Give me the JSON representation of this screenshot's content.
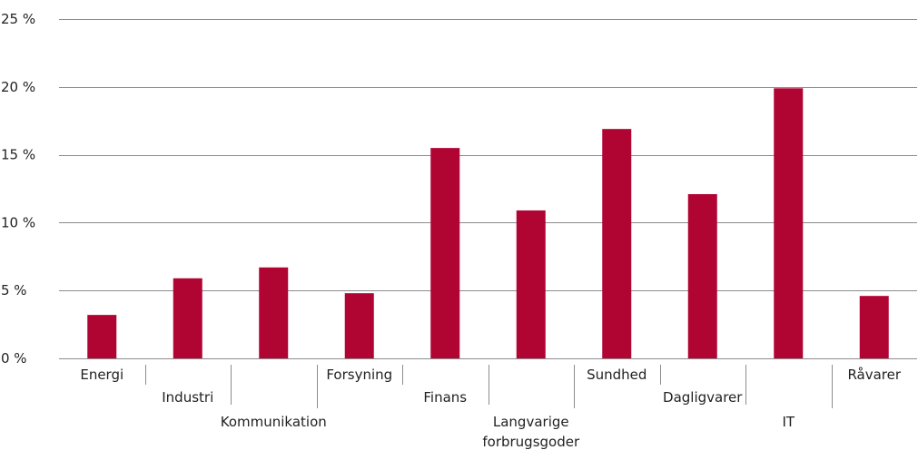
{
  "chart_data": {
    "type": "bar",
    "categories": [
      [
        "Energi"
      ],
      [
        "Industri"
      ],
      [
        "Kommunikation"
      ],
      [
        "Forsyning"
      ],
      [
        "Finans"
      ],
      [
        "Langvarige",
        "forbrugsgoder"
      ],
      [
        "Sundhed"
      ],
      [
        "Dagligvarer"
      ],
      [
        "IT"
      ],
      [
        "Råvarer"
      ]
    ],
    "values": [
      3.2,
      5.9,
      6.7,
      4.8,
      15.5,
      10.9,
      16.9,
      12.1,
      19.9,
      4.6
    ],
    "ylim": [
      0,
      25
    ],
    "yticks": [
      0,
      5,
      10,
      15,
      20,
      25
    ],
    "ytick_labels": [
      "0 %",
      "5 %",
      "10 %",
      "15 %",
      "20 %",
      "25 %"
    ],
    "grid": true,
    "title": "",
    "xlabel": "",
    "ylabel": "",
    "colors": {
      "bar": "#b00433",
      "grid": "#8c8c8c",
      "text": "#222222",
      "axis": "#8c8c8c"
    }
  }
}
